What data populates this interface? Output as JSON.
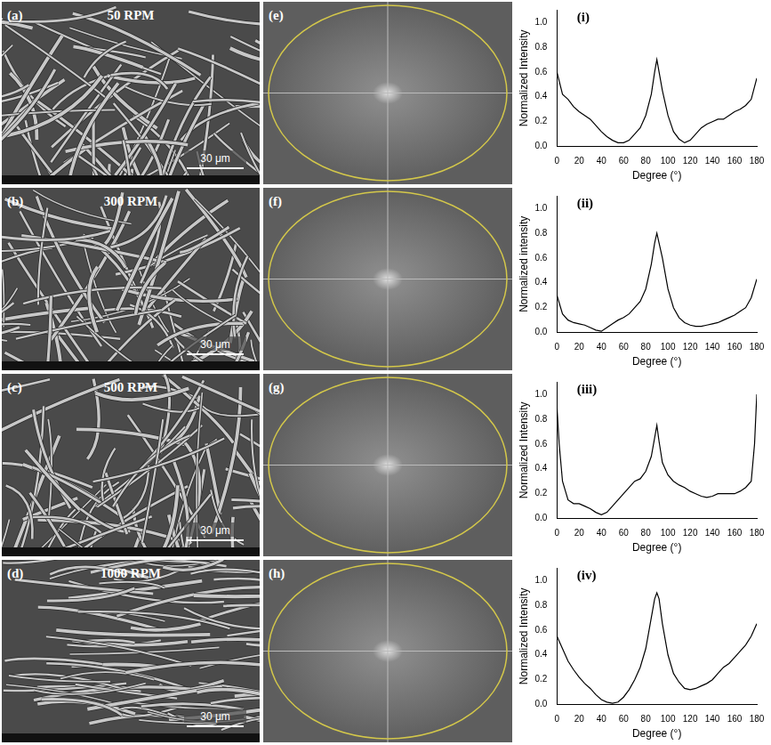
{
  "images": [
    {
      "letter": "(a)",
      "label": "50 RPM",
      "scale": "30 μm"
    },
    {
      "letter": "(b)",
      "label": "300 RPM",
      "scale": "30 μm"
    },
    {
      "letter": "(c)",
      "label": "500 RPM",
      "scale": "30 μm"
    },
    {
      "letter": "(d)",
      "label": "1000 RPM",
      "scale": "30 μm"
    }
  ],
  "fft": [
    {
      "letter": "(e)"
    },
    {
      "letter": "(f)"
    },
    {
      "letter": "(g)"
    },
    {
      "letter": "(h)"
    }
  ],
  "chart_data": [
    {
      "type": "line",
      "title": "(i)",
      "x_label": "Degree (°)",
      "y_label": "Normalized Intensity",
      "color": "#000000",
      "grid": false,
      "x": [
        0,
        5,
        10,
        15,
        20,
        25,
        30,
        35,
        40,
        45,
        50,
        55,
        60,
        65,
        70,
        75,
        80,
        85,
        88,
        90,
        92,
        95,
        100,
        105,
        110,
        115,
        120,
        125,
        130,
        135,
        140,
        145,
        150,
        155,
        160,
        165,
        170,
        175,
        180
      ],
      "values": [
        0.6,
        0.42,
        0.38,
        0.32,
        0.28,
        0.25,
        0.22,
        0.17,
        0.12,
        0.08,
        0.05,
        0.03,
        0.03,
        0.05,
        0.1,
        0.15,
        0.25,
        0.42,
        0.6,
        0.7,
        0.6,
        0.45,
        0.25,
        0.12,
        0.06,
        0.03,
        0.05,
        0.1,
        0.15,
        0.18,
        0.2,
        0.22,
        0.22,
        0.25,
        0.28,
        0.3,
        0.33,
        0.38,
        0.55
      ],
      "xlim": [
        0,
        180
      ],
      "xticks": [
        0,
        20,
        40,
        60,
        80,
        100,
        120,
        140,
        160,
        180
      ],
      "ylim": [
        0,
        1.1
      ],
      "yticks": [
        {
          "value": 0,
          "label": "0.0"
        },
        0.2,
        0.4,
        0.6,
        0.8,
        {
          "value": 1,
          "label": "1.0"
        }
      ]
    },
    {
      "type": "line",
      "title": "(ii)",
      "x_label": "Degree (°)",
      "y_label": "Normalized intensity",
      "color": "#000000",
      "grid": false,
      "x": [
        0,
        5,
        10,
        15,
        20,
        25,
        30,
        35,
        40,
        45,
        50,
        55,
        60,
        65,
        70,
        75,
        80,
        85,
        88,
        90,
        92,
        95,
        100,
        105,
        110,
        115,
        120,
        125,
        130,
        135,
        140,
        145,
        150,
        155,
        160,
        165,
        170,
        175,
        180
      ],
      "values": [
        0.3,
        0.15,
        0.1,
        0.08,
        0.07,
        0.06,
        0.04,
        0.02,
        0.01,
        0.04,
        0.07,
        0.1,
        0.12,
        0.15,
        0.2,
        0.25,
        0.35,
        0.55,
        0.72,
        0.8,
        0.72,
        0.6,
        0.35,
        0.2,
        0.12,
        0.08,
        0.06,
        0.05,
        0.05,
        0.06,
        0.07,
        0.08,
        0.1,
        0.12,
        0.14,
        0.17,
        0.2,
        0.28,
        0.43
      ],
      "xlim": [
        0,
        180
      ],
      "xticks": [
        0,
        20,
        40,
        60,
        80,
        100,
        120,
        140,
        160,
        180
      ],
      "ylim": [
        0,
        1.1
      ],
      "yticks": [
        {
          "value": 0,
          "label": "0.0"
        },
        0.2,
        0.4,
        0.6,
        0.8,
        {
          "value": 1,
          "label": "1.0"
        }
      ]
    },
    {
      "type": "line",
      "title": "(iii)",
      "x_label": "Degree (°)",
      "y_label": "Normalized Intensity",
      "color": "#000000",
      "grid": false,
      "x": [
        0,
        2,
        5,
        10,
        15,
        20,
        25,
        30,
        35,
        40,
        45,
        50,
        55,
        60,
        65,
        70,
        75,
        80,
        85,
        88,
        90,
        92,
        95,
        100,
        105,
        110,
        115,
        120,
        125,
        130,
        135,
        140,
        145,
        150,
        155,
        160,
        165,
        170,
        175,
        178,
        180
      ],
      "values": [
        0.9,
        0.6,
        0.3,
        0.15,
        0.12,
        0.12,
        0.1,
        0.08,
        0.05,
        0.03,
        0.05,
        0.1,
        0.15,
        0.2,
        0.25,
        0.3,
        0.32,
        0.38,
        0.5,
        0.65,
        0.75,
        0.62,
        0.45,
        0.35,
        0.3,
        0.27,
        0.25,
        0.22,
        0.2,
        0.18,
        0.17,
        0.18,
        0.2,
        0.2,
        0.2,
        0.2,
        0.22,
        0.25,
        0.3,
        0.6,
        1.0
      ],
      "xlim": [
        0,
        180
      ],
      "xticks": [
        0,
        20,
        40,
        60,
        80,
        100,
        120,
        140,
        160,
        180
      ],
      "ylim": [
        0,
        1.1
      ],
      "yticks": [
        {
          "value": 0,
          "label": "0.0"
        },
        0.2,
        0.4,
        0.6,
        0.8,
        {
          "value": 1,
          "label": "1.0"
        }
      ]
    },
    {
      "type": "line",
      "title": "(iv)",
      "x_label": "Degree (°)",
      "y_label": "Normalized Intensity",
      "color": "#000000",
      "grid": false,
      "x": [
        0,
        5,
        10,
        15,
        20,
        25,
        30,
        35,
        40,
        45,
        50,
        55,
        60,
        65,
        70,
        75,
        80,
        85,
        88,
        90,
        92,
        95,
        100,
        105,
        110,
        115,
        120,
        125,
        130,
        135,
        140,
        145,
        150,
        155,
        160,
        165,
        170,
        175,
        180
      ],
      "values": [
        0.55,
        0.45,
        0.35,
        0.28,
        0.22,
        0.17,
        0.13,
        0.08,
        0.04,
        0.02,
        0.01,
        0.02,
        0.06,
        0.12,
        0.2,
        0.3,
        0.45,
        0.7,
        0.85,
        0.9,
        0.85,
        0.65,
        0.4,
        0.25,
        0.18,
        0.13,
        0.12,
        0.13,
        0.15,
        0.17,
        0.2,
        0.25,
        0.3,
        0.33,
        0.38,
        0.43,
        0.48,
        0.55,
        0.65
      ],
      "xlim": [
        0,
        180
      ],
      "xticks": [
        0,
        20,
        40,
        60,
        80,
        100,
        120,
        140,
        160,
        180
      ],
      "ylim": [
        0,
        1.1
      ],
      "yticks": [
        {
          "value": 0,
          "label": "0.0"
        },
        0.2,
        0.4,
        0.6,
        0.8,
        {
          "value": 1,
          "label": "1.0"
        }
      ]
    }
  ]
}
